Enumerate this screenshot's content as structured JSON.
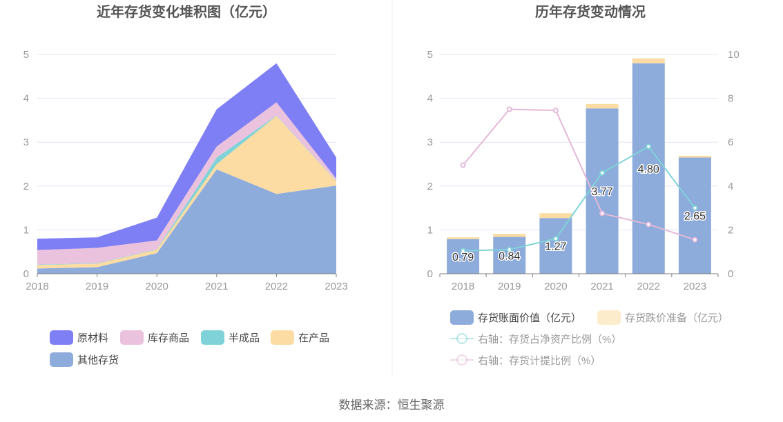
{
  "source_text": "数据来源：恒生聚源",
  "chart_data": [
    {
      "type": "area",
      "title": "近年存货变化堆积图（亿元）",
      "x": [
        "2018",
        "2019",
        "2020",
        "2021",
        "2022",
        "2023"
      ],
      "ylim": [
        0,
        5
      ],
      "yticks": [
        0,
        1,
        2,
        3,
        4,
        5
      ],
      "grid": true,
      "legend_position": "bottom",
      "stacked": true,
      "series": [
        {
          "name": "其他存货",
          "color": "#8eacdb",
          "values": [
            0.12,
            0.15,
            0.47,
            2.38,
            1.82,
            2.01
          ]
        },
        {
          "name": "在产品",
          "color": "#fcdca2",
          "values": [
            0.08,
            0.08,
            0.08,
            0.12,
            1.78,
            0.1
          ]
        },
        {
          "name": "半成品",
          "color": "#7fd3d8",
          "values": [
            0.01,
            0.01,
            0.01,
            0.15,
            0.01,
            0.01
          ]
        },
        {
          "name": "库存商品",
          "color": "#ebc2dd",
          "values": [
            0.33,
            0.35,
            0.2,
            0.25,
            0.3,
            0.05
          ]
        },
        {
          "name": "原材料",
          "color": "#7f7ff5",
          "values": [
            0.26,
            0.24,
            0.52,
            0.85,
            0.89,
            0.48
          ]
        }
      ],
      "legend_order": [
        "原材料",
        "库存商品",
        "半成品",
        "在产品",
        "其他存货"
      ]
    },
    {
      "type": "bar",
      "title": "历年存货变动情况",
      "categories": [
        "2018",
        "2019",
        "2020",
        "2021",
        "2022",
        "2023"
      ],
      "ylim": [
        0,
        5
      ],
      "yticks": [
        0,
        1,
        2,
        3,
        4,
        5
      ],
      "y2lim": [
        0,
        10
      ],
      "y2ticks": [
        0,
        2,
        4,
        6,
        8,
        10
      ],
      "grid": true,
      "legend_position": "bottom",
      "series": [
        {
          "name": "存货账面价值（亿元）",
          "type": "bar",
          "stack": true,
          "color": "#8eacdb",
          "values": [
            0.79,
            0.84,
            1.27,
            3.77,
            4.8,
            2.65
          ],
          "labels": [
            "0.79",
            "0.84",
            "1.27",
            "3.77",
            "4.80",
            "2.65"
          ]
        },
        {
          "name": "存货跌价准备（亿元）",
          "type": "bar",
          "stack": true,
          "color": "#fcdca2",
          "values": [
            0.04,
            0.07,
            0.11,
            0.1,
            0.11,
            0.04
          ]
        },
        {
          "name": "右轴：存货占净资产比例（%）",
          "type": "line",
          "axis": "right",
          "color": "#7fd3d8",
          "values": [
            1.05,
            1.1,
            1.6,
            4.6,
            5.8,
            3.0
          ]
        },
        {
          "name": "右轴：存货计提比例（%）",
          "type": "line",
          "axis": "right",
          "color": "#e4b8d9",
          "values": [
            4.95,
            7.5,
            7.45,
            2.75,
            2.25,
            1.55
          ]
        }
      ]
    }
  ]
}
